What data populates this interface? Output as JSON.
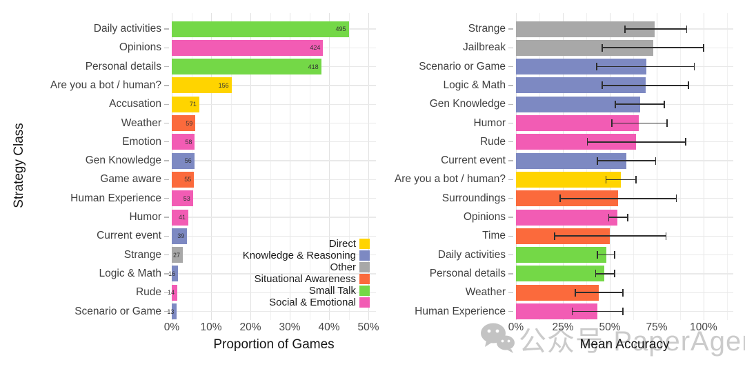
{
  "watermark": {
    "icon": "wechat-icon",
    "text": "公众号·PaperAgent"
  },
  "palette": {
    "direct": "#FFD400",
    "knowledge_reasoning": "#7D89C2",
    "other": "#A8A8A8",
    "situational_awareness": "#FB6A3C",
    "small_talk": "#74D847",
    "social_emotional": "#F25CB4"
  },
  "legend": {
    "items": [
      {
        "label": "Direct",
        "class": "direct"
      },
      {
        "label": "Knowledge & Reasoning",
        "class": "knowledge_reasoning"
      },
      {
        "label": "Other",
        "class": "other"
      },
      {
        "label": "Situational Awareness",
        "class": "situational_awareness"
      },
      {
        "label": "Small Talk",
        "class": "small_talk"
      },
      {
        "label": "Social & Emotional",
        "class": "social_emotional"
      }
    ]
  },
  "chart_data": [
    {
      "type": "bar",
      "orientation": "horizontal",
      "xlabel": "Proportion of Games",
      "ylabel": "Strategy Class",
      "x_ticks": [
        "0%",
        "10%",
        "20%",
        "30%",
        "40%",
        "50%"
      ],
      "xlim_pct": [
        0,
        52
      ],
      "grid": "on",
      "legend_position": "inside-bottom-right",
      "bars": [
        {
          "category": "Daily activities",
          "count": 495,
          "pct": 45.0,
          "class": "small_talk"
        },
        {
          "category": "Opinions",
          "count": 424,
          "pct": 38.5,
          "class": "social_emotional"
        },
        {
          "category": "Personal details",
          "count": 418,
          "pct": 38.0,
          "class": "small_talk"
        },
        {
          "category": "Are you a bot / human?",
          "count": 156,
          "pct": 15.2,
          "class": "direct"
        },
        {
          "category": "Accusation",
          "count": 71,
          "pct": 7.0,
          "class": "direct"
        },
        {
          "category": "Weather",
          "count": 59,
          "pct": 6.0,
          "class": "situational_awareness"
        },
        {
          "category": "Emotion",
          "count": 58,
          "pct": 5.85,
          "class": "social_emotional"
        },
        {
          "category": "Gen Knowledge",
          "count": 56,
          "pct": 5.75,
          "class": "knowledge_reasoning"
        },
        {
          "category": "Game aware",
          "count": 55,
          "pct": 5.65,
          "class": "situational_awareness"
        },
        {
          "category": "Human Experience",
          "count": 53,
          "pct": 5.4,
          "class": "social_emotional"
        },
        {
          "category": "Humor",
          "count": 41,
          "pct": 4.2,
          "class": "social_emotional"
        },
        {
          "category": "Current event",
          "count": 39,
          "pct": 3.9,
          "class": "knowledge_reasoning"
        },
        {
          "category": "Strange",
          "count": 27,
          "pct": 2.8,
          "class": "other"
        },
        {
          "category": "Logic & Math",
          "count": 16,
          "pct": 1.6,
          "class": "knowledge_reasoning"
        },
        {
          "category": "Rude",
          "count": 14,
          "pct": 1.4,
          "class": "social_emotional"
        },
        {
          "category": "Scenario or Game",
          "count": 13,
          "pct": 1.3,
          "class": "knowledge_reasoning"
        }
      ]
    },
    {
      "type": "bar",
      "orientation": "horizontal",
      "xlabel": "Mean Accuracy",
      "ylabel": "",
      "x_ticks": [
        "0%",
        "25%",
        "50%",
        "75%",
        "100%"
      ],
      "xlim_pct": [
        0,
        116
      ],
      "grid": "on",
      "error_bars": true,
      "bars": [
        {
          "category": "Strange",
          "pct": 74.0,
          "err_lo": 58.0,
          "err_hi": 91.0,
          "class": "other"
        },
        {
          "category": "Jailbreak",
          "pct": 73.0,
          "err_lo": 46.0,
          "err_hi": 100.0,
          "class": "other"
        },
        {
          "category": "Scenario or Game",
          "pct": 69.5,
          "err_lo": 43.0,
          "err_hi": 95.0,
          "class": "knowledge_reasoning"
        },
        {
          "category": "Logic & Math",
          "pct": 69.0,
          "err_lo": 46.0,
          "err_hi": 92.0,
          "class": "knowledge_reasoning"
        },
        {
          "category": "Gen Knowledge",
          "pct": 66.0,
          "err_lo": 53.0,
          "err_hi": 79.0,
          "class": "knowledge_reasoning"
        },
        {
          "category": "Humor",
          "pct": 65.5,
          "err_lo": 51.0,
          "err_hi": 80.5,
          "class": "social_emotional"
        },
        {
          "category": "Rude",
          "pct": 64.0,
          "err_lo": 38.0,
          "err_hi": 90.5,
          "class": "social_emotional"
        },
        {
          "category": "Current event",
          "pct": 59.0,
          "err_lo": 43.5,
          "err_hi": 74.5,
          "class": "knowledge_reasoning"
        },
        {
          "category": "Are you a bot / human?",
          "pct": 56.0,
          "err_lo": 48.0,
          "err_hi": 64.0,
          "class": "direct"
        },
        {
          "category": "Surroundings",
          "pct": 54.5,
          "err_lo": 23.5,
          "err_hi": 85.5,
          "class": "situational_awareness"
        },
        {
          "category": "Opinions",
          "pct": 54.0,
          "err_lo": 49.5,
          "err_hi": 59.5,
          "class": "social_emotional"
        },
        {
          "category": "Time",
          "pct": 50.0,
          "err_lo": 20.5,
          "err_hi": 80.0,
          "class": "situational_awareness"
        },
        {
          "category": "Daily activities",
          "pct": 48.0,
          "err_lo": 43.5,
          "err_hi": 52.5,
          "class": "small_talk"
        },
        {
          "category": "Personal details",
          "pct": 47.0,
          "err_lo": 42.5,
          "err_hi": 52.5,
          "class": "small_talk"
        },
        {
          "category": "Weather",
          "pct": 44.0,
          "err_lo": 31.5,
          "err_hi": 57.0,
          "class": "situational_awareness"
        },
        {
          "category": "Human Experience",
          "pct": 43.5,
          "err_lo": 30.0,
          "err_hi": 57.0,
          "class": "social_emotional"
        }
      ]
    }
  ]
}
